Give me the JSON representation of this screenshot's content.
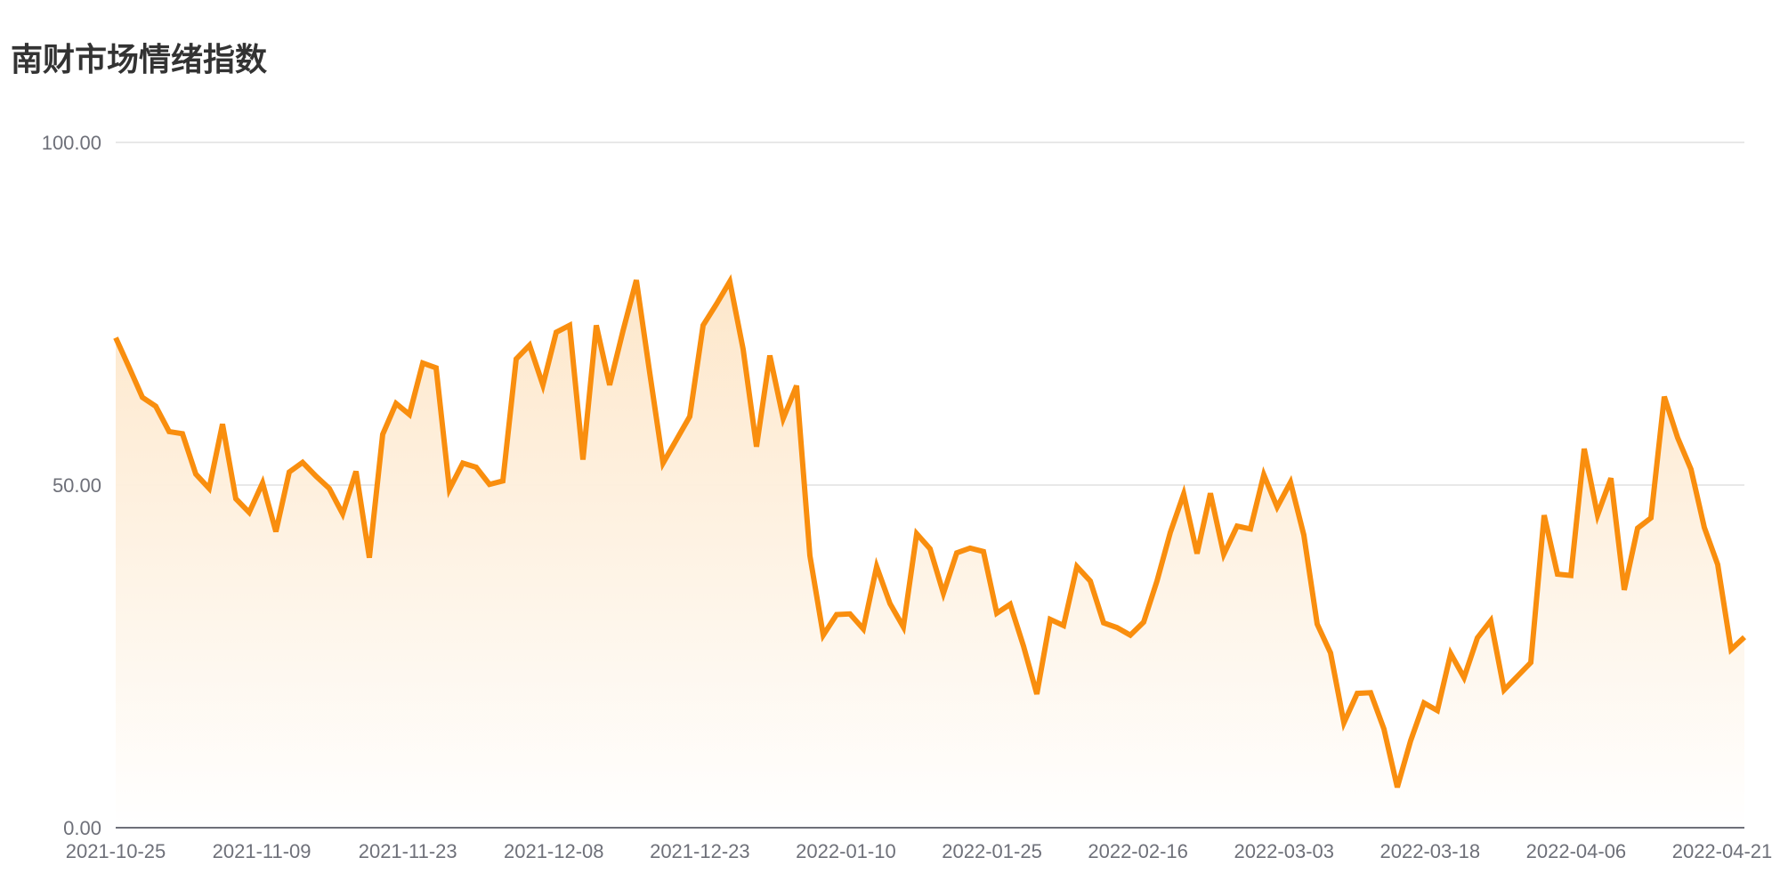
{
  "chart_data": {
    "type": "area",
    "title": "南财市场情绪指数",
    "xlabel": "",
    "ylabel": "",
    "ylim": [
      0,
      100
    ],
    "yticks": [
      "0.00",
      "50.00",
      "100.00"
    ],
    "grid": true,
    "legend": "none",
    "x_tick_labels": [
      "2021-10-25",
      "2021-11-09",
      "2021-11-23",
      "2021-12-08",
      "2021-12-23",
      "2022-01-10",
      "2022-01-25",
      "2022-02-16",
      "2022-03-03",
      "2022-03-18",
      "2022-04-06",
      "2022-04-21"
    ],
    "colors": {
      "line": "#f98e0e",
      "area_top": "#fde6c8",
      "area_bottom": "#ffffff",
      "grid": "#e0e0e0",
      "axis": "#6e7079"
    },
    "series": [
      {
        "values": [
          71.5,
          67.2,
          62.8,
          61.5,
          57.8,
          57.5,
          51.6,
          49.5,
          58.9,
          48.0,
          46.0,
          50.3,
          43.2,
          51.9,
          53.3,
          51.3,
          49.5,
          45.8,
          52.0,
          39.4,
          57.4,
          61.9,
          60.3,
          67.8,
          67.1,
          49.4,
          53.2,
          52.6,
          50.1,
          50.6,
          68.4,
          70.4,
          64.6,
          72.3,
          73.3,
          53.7,
          73.3,
          64.6,
          72.5,
          79.9,
          66.4,
          53.2,
          56.6,
          60.0,
          73.3,
          76.4,
          79.7,
          69.8,
          55.6,
          68.9,
          59.7,
          64.5,
          39.7,
          28.1,
          31.1,
          31.2,
          29.0,
          38.1,
          32.7,
          29.3,
          42.9,
          40.7,
          34.2,
          40.1,
          40.8,
          40.3,
          31.3,
          32.6,
          26.5,
          19.5,
          30.4,
          29.5,
          38.1,
          36.0,
          29.9,
          29.2,
          28.1,
          30.0,
          36.0,
          43.1,
          48.7,
          40.0,
          48.8,
          39.9,
          44.0,
          43.6,
          51.5,
          46.8,
          50.4,
          42.7,
          29.7,
          25.5,
          15.3,
          19.6,
          19.7,
          14.4,
          5.9,
          12.7,
          18.2,
          17.1,
          25.4,
          21.9,
          27.7,
          30.2,
          20.1,
          22.1,
          24.1,
          45.6,
          37.0,
          36.8,
          55.3,
          45.6,
          51.0,
          34.7,
          43.7,
          45.2,
          62.9,
          56.9,
          52.3,
          43.8,
          38.4,
          26.0,
          27.8
        ]
      }
    ]
  }
}
